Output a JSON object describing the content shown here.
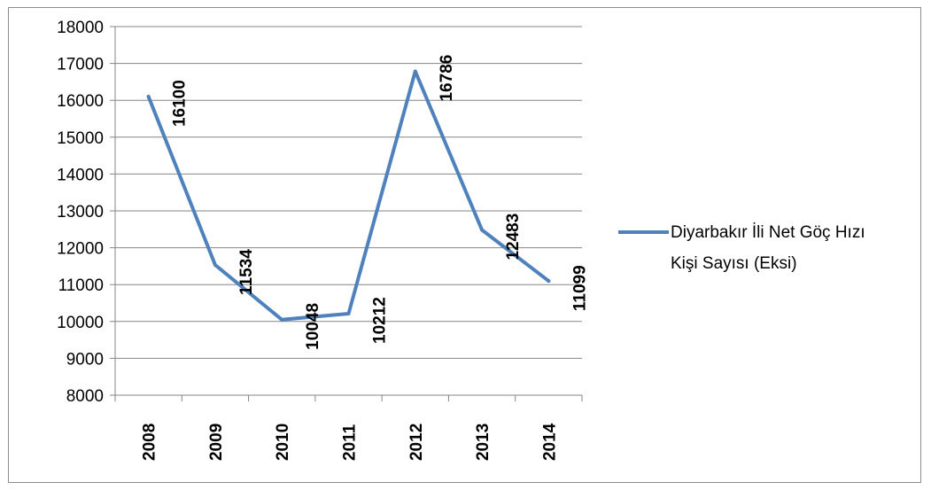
{
  "chart_data": {
    "type": "line",
    "categories": [
      "2008",
      "2009",
      "2010",
      "2011",
      "2012",
      "2013",
      "2014"
    ],
    "series": [
      {
        "name": "Diyarbakır İli Net Göç Hızı Kişi Sayısı (Eksi)",
        "values": [
          16100,
          11534,
          10048,
          10212,
          16786,
          12483,
          11099
        ],
        "labels": [
          "16100",
          "11534",
          "10048",
          "10212",
          "16786",
          "12483",
          "11099"
        ],
        "color": "#4f81bd"
      }
    ],
    "yticks": [
      "8000",
      "9000",
      "10000",
      "11000",
      "12000",
      "13000",
      "14000",
      "15000",
      "16000",
      "17000",
      "18000"
    ],
    "ylim": [
      8000,
      18000
    ],
    "grid": true,
    "legend_position": "right",
    "legend_lines": [
      "Diyarbakır İli Net Göç Hızı",
      "Kişi Sayısı (Eksi)"
    ],
    "title": "",
    "xlabel": "",
    "ylabel": ""
  }
}
